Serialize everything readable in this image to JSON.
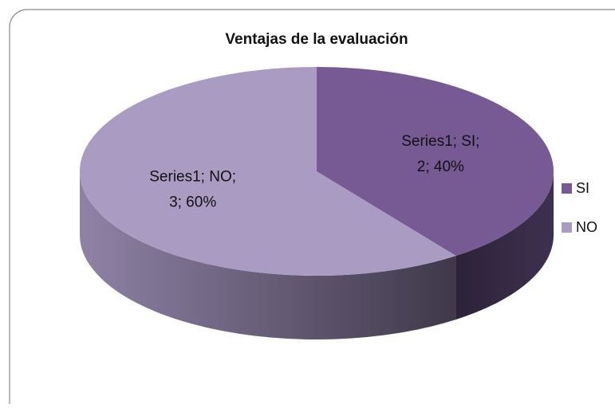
{
  "chart_data": {
    "type": "pie3d",
    "title": "Ventajas de la evaluación",
    "categories": [
      "SI",
      "NO"
    ],
    "values": [
      2,
      3
    ],
    "value_labels": [
      [
        "Series1; SI;",
        "2; 40%"
      ],
      [
        "Series1; NO;",
        "3; 60%"
      ]
    ],
    "colors": [
      "#775a93",
      "#a99bc2"
    ],
    "legend": "right"
  }
}
